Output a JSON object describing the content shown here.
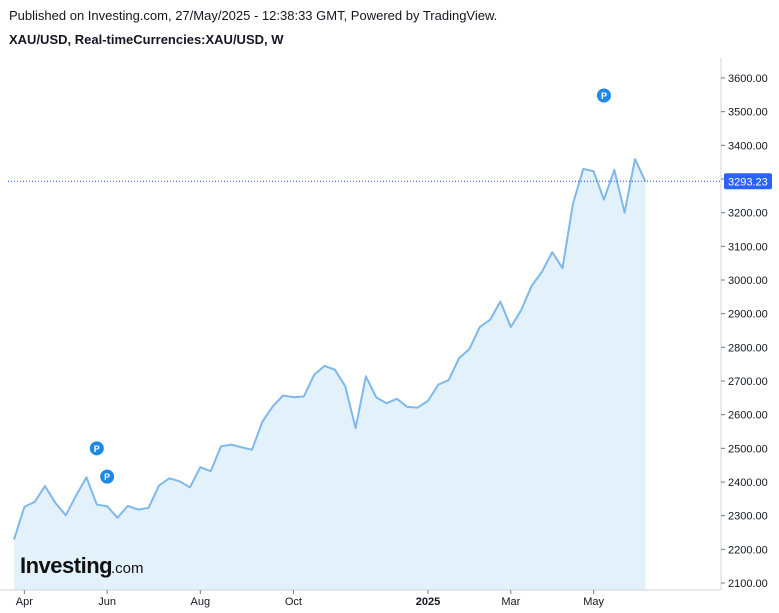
{
  "header": {
    "published_line": "Published on Investing.com, 27/May/2025 - 12:38:33 GMT, Powered by TradingView.",
    "symbol_line": "XAU/USD, Real-timeCurrencies:XAU/USD, W"
  },
  "logo": {
    "main": "Investing",
    "suffix": ".com"
  },
  "colors": {
    "line": "#7fb8ea",
    "fill": "#e3f1fb",
    "price_label_bg": "#2962ff",
    "marker": "#1e88e5",
    "dotted_line": "#1e53e5"
  },
  "chart_data": {
    "type": "area",
    "title": "XAU/USD, Real-timeCurrencies:XAU/USD, W",
    "y_axis_side": "right",
    "ylim": [
      2085,
      3680
    ],
    "y_ticks": [
      "2100.00",
      "2200.00",
      "2300.00",
      "2400.00",
      "2500.00",
      "2600.00",
      "2700.00",
      "2800.00",
      "2900.00",
      "3000.00",
      "3100.00",
      "3200.00",
      "3300.00",
      "3400.00",
      "3500.00",
      "3600.00"
    ],
    "x_ticks": [
      {
        "label": "Apr",
        "index": 1,
        "bold": false
      },
      {
        "label": "Jun",
        "index": 9,
        "bold": false
      },
      {
        "label": "Aug",
        "index": 18,
        "bold": false
      },
      {
        "label": "Oct",
        "index": 27,
        "bold": false
      },
      {
        "label": "2025",
        "index": 40,
        "bold": true
      },
      {
        "label": "Mar",
        "index": 48,
        "bold": false
      },
      {
        "label": "May",
        "index": 56,
        "bold": false
      }
    ],
    "values": [
      2229,
      2326,
      2341,
      2388,
      2338,
      2301,
      2360,
      2414,
      2333,
      2328,
      2294,
      2329,
      2318,
      2323,
      2389,
      2411,
      2402,
      2384,
      2444,
      2432,
      2506,
      2511,
      2503,
      2496,
      2579,
      2625,
      2657,
      2652,
      2654,
      2718,
      2745,
      2734,
      2685,
      2560,
      2714,
      2651,
      2634,
      2647,
      2623,
      2621,
      2641,
      2689,
      2703,
      2768,
      2795,
      2860,
      2882,
      2936,
      2860,
      2910,
      2982,
      3024,
      3083,
      3035,
      3226,
      3330,
      3323,
      3239,
      3327,
      3200,
      3359,
      3293
    ],
    "last_price": "3293.23",
    "last_value": 3293.23,
    "markers": [
      {
        "label": "P",
        "index": 8,
        "value": 2500
      },
      {
        "label": "P",
        "index": 9,
        "value": 2416
      },
      {
        "label": "P",
        "index": 57,
        "value": 3548
      }
    ]
  }
}
